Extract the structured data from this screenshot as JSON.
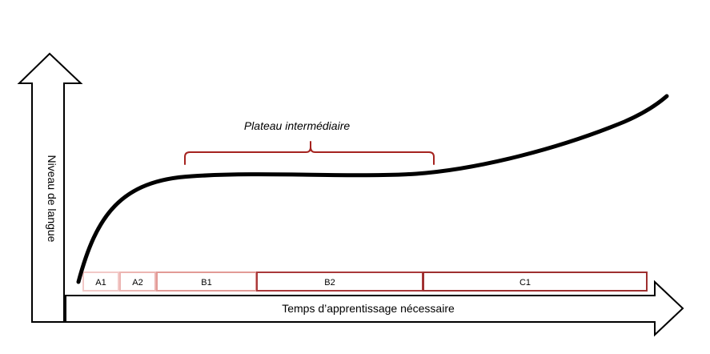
{
  "y_axis_label": "Niveau de langue",
  "x_axis_label": "Temps d’apprentissage nécessaire",
  "plateau_label": "Plateau intermédiaire",
  "levels": [
    {
      "label": "A1",
      "color": "#f2c9c7"
    },
    {
      "label": "A2",
      "color": "#ecb5b2"
    },
    {
      "label": "B1",
      "color": "#e29a96"
    },
    {
      "label": "B2",
      "color": "#a9393a"
    },
    {
      "label": "C1",
      "color": "#9e2f2f"
    }
  ],
  "colors": {
    "curve": "#000000",
    "brace": "#a5231f"
  }
}
